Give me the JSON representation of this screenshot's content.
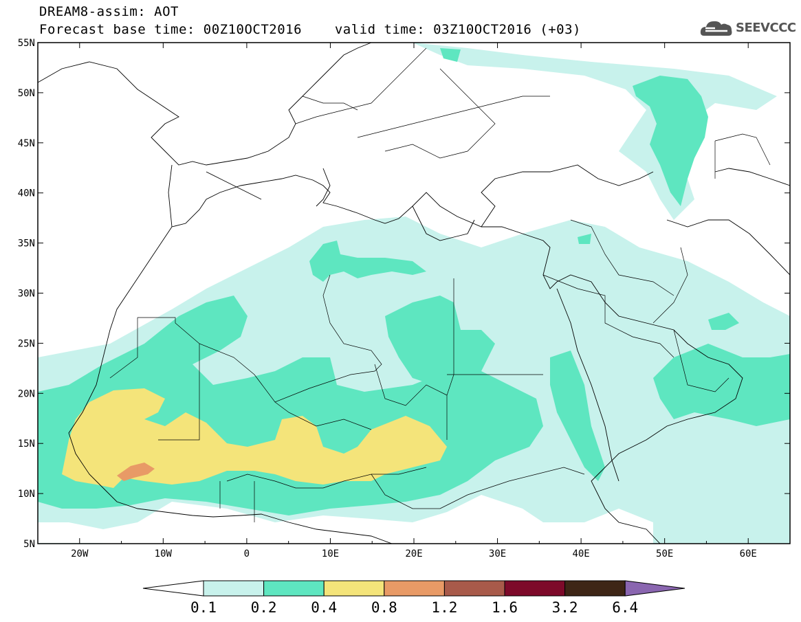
{
  "header": {
    "title": "DREAM8-assim: AOT",
    "forecast_base": "Forecast base time: 00Z10OCT2016",
    "valid_time": "valid time: 03Z10OCT2016 (+03)"
  },
  "logo": {
    "text": "SEEVCCC",
    "icon": "cloud-icon"
  },
  "map": {
    "lon_range": [
      -25,
      65
    ],
    "lat_range": [
      5,
      55
    ],
    "lat_ticks": [
      "55N",
      "50N",
      "45N",
      "40N",
      "35N",
      "30N",
      "25N",
      "20N",
      "15N",
      "10N",
      "5N"
    ],
    "lon_ticks": [
      "20W",
      "10W",
      "0",
      "10E",
      "20E",
      "30E",
      "40E",
      "50E",
      "60E"
    ]
  },
  "colorbar": {
    "labels": [
      "0.1",
      "0.2",
      "0.4",
      "0.8",
      "1.2",
      "1.6",
      "3.2",
      "6.4"
    ],
    "colors": [
      "#ffffff",
      "#c8f2ec",
      "#5ee6c0",
      "#f4e47a",
      "#e89a66",
      "#a85a4a",
      "#7d0a2a",
      "#3e2616",
      "#8a66b0"
    ]
  },
  "colors": {
    "band_01": "#c8f2ec",
    "band_02": "#5ee6c0",
    "band_04": "#f4e47a",
    "band_08": "#e89a66",
    "band_12": "#a85a4a"
  }
}
